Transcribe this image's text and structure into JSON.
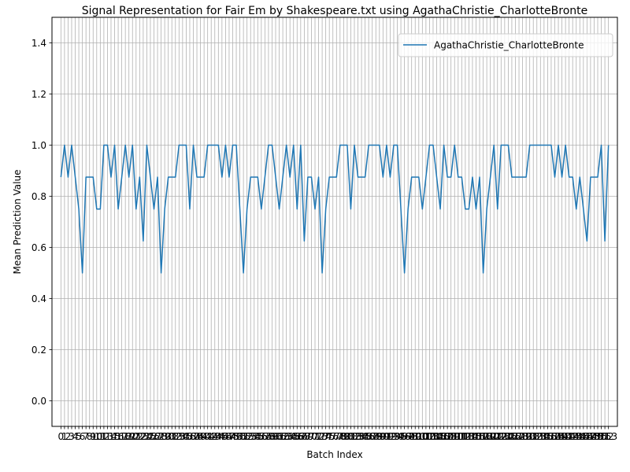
{
  "chart_data": {
    "type": "line",
    "title": "Signal Representation for Fair Em by Shakespeare.txt using AgathaChristie_CharlotteBronte",
    "xlabel": "Batch Index",
    "ylabel": "Mean Prediction Value",
    "xlim": [
      -2.5,
      155.5
    ],
    "ylim": [
      -0.1,
      1.5
    ],
    "yticks": [
      0.0,
      0.2,
      0.4,
      0.6,
      0.8,
      1.0,
      1.2,
      1.4
    ],
    "ytick_labels": [
      "0.0",
      "0.2",
      "0.4",
      "0.6",
      "0.8",
      "1.0",
      "1.2",
      "1.4"
    ],
    "grid": true,
    "legend_position": "upper right",
    "series": [
      {
        "name": "AgathaChristie_CharlotteBronte",
        "color": "#1f77b4",
        "values": [
          0.875,
          1.0,
          0.875,
          1.0,
          0.875,
          0.75,
          0.5,
          0.875,
          0.875,
          0.875,
          0.75,
          0.75,
          1.0,
          1.0,
          0.875,
          1.0,
          0.75,
          0.875,
          1.0,
          0.875,
          1.0,
          0.75,
          0.875,
          0.625,
          1.0,
          0.875,
          0.75,
          0.875,
          0.5,
          0.75,
          0.875,
          0.875,
          0.875,
          1.0,
          1.0,
          1.0,
          0.75,
          1.0,
          0.875,
          0.875,
          0.875,
          1.0,
          1.0,
          1.0,
          1.0,
          0.875,
          1.0,
          0.875,
          1.0,
          1.0,
          0.75,
          0.5,
          0.75,
          0.875,
          0.875,
          0.875,
          0.75,
          0.875,
          1.0,
          1.0,
          0.875,
          0.75,
          0.875,
          1.0,
          0.875,
          1.0,
          0.75,
          1.0,
          0.625,
          0.875,
          0.875,
          0.75,
          0.875,
          0.5,
          0.75,
          0.875,
          0.875,
          0.875,
          1.0,
          1.0,
          1.0,
          0.75,
          1.0,
          0.875,
          0.875,
          0.875,
          1.0,
          1.0,
          1.0,
          1.0,
          0.875,
          1.0,
          0.875,
          1.0,
          1.0,
          0.75,
          0.5,
          0.75,
          0.875,
          0.875,
          0.875,
          0.75,
          0.875,
          1.0,
          1.0,
          0.875,
          0.75,
          1.0,
          0.875,
          0.875,
          1.0,
          0.875,
          0.875,
          0.75,
          0.75,
          0.875,
          0.75,
          0.875,
          0.5,
          0.75,
          0.875,
          1.0,
          0.75,
          1.0,
          1.0,
          1.0,
          0.875,
          0.875,
          0.875,
          0.875,
          0.875,
          1.0,
          1.0,
          1.0,
          1.0,
          1.0,
          1.0,
          1.0,
          0.875,
          1.0,
          0.875,
          1.0,
          0.875,
          0.875,
          0.75,
          0.875,
          0.75,
          0.625,
          0.875,
          0.875,
          0.875,
          1.0,
          0.625,
          1.0
        ]
      }
    ]
  }
}
